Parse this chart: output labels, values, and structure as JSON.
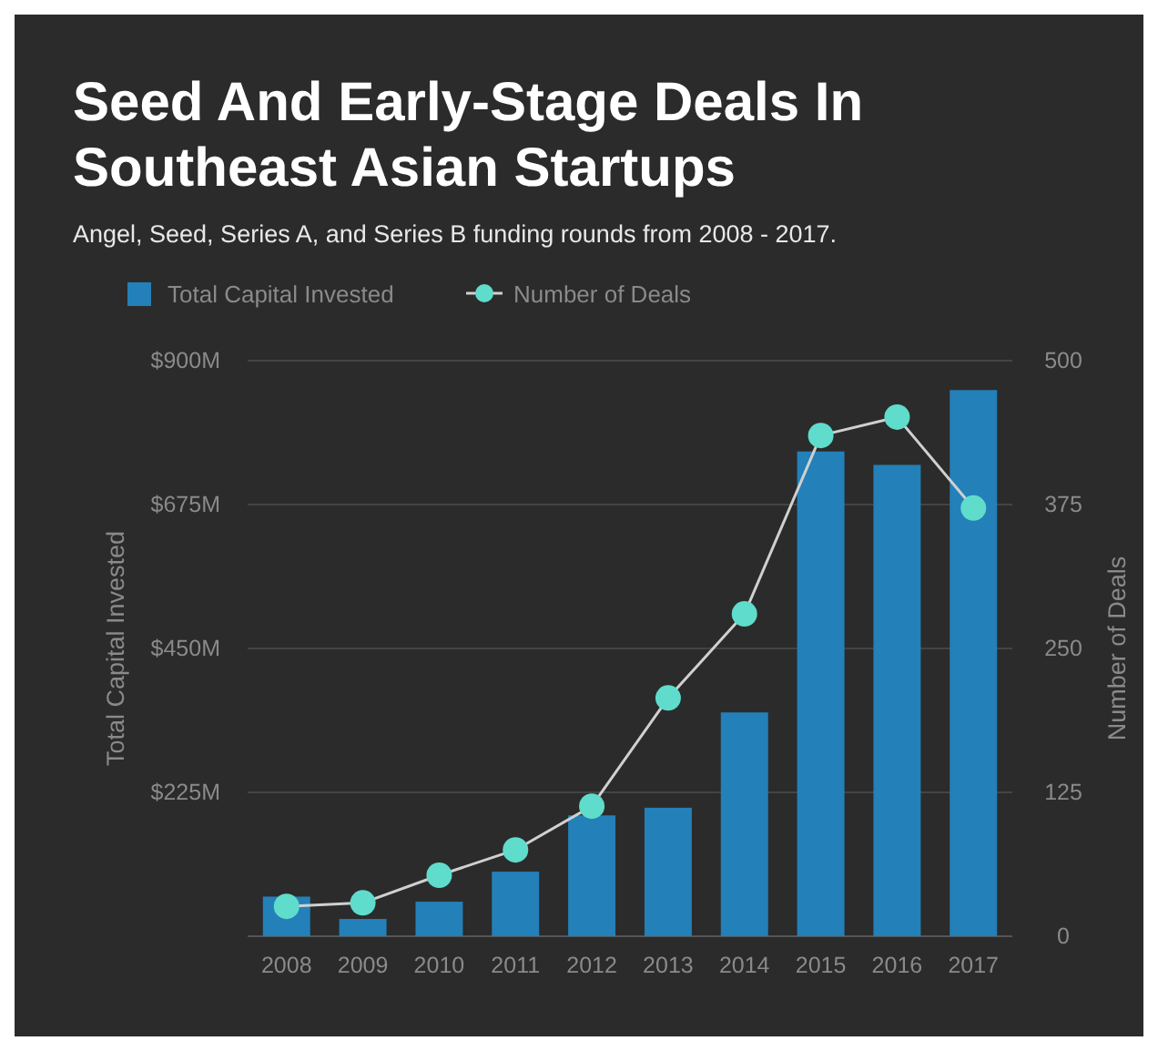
{
  "chart_data": {
    "type": "bar",
    "title": "Seed And Early-Stage Deals In Southeast Asian Startups",
    "subtitle": "Angel, Seed, Series A, and Series B funding rounds from 2008 - 2017.",
    "ylabel": "Total Capital Invested",
    "y2label": "Number of Deals",
    "categories": [
      "2008",
      "2009",
      "2010",
      "2011",
      "2012",
      "2013",
      "2014",
      "2015",
      "2016",
      "2017"
    ],
    "series": [
      {
        "name": "Total Capital Invested",
        "color": "#2380b8",
        "values": [
          62,
          27,
          54,
          101,
          189,
          201,
          350,
          758,
          737,
          854
        ]
      },
      {
        "name": "Number of Deals",
        "type": "line",
        "axis": "y2",
        "color": "#5fdccb",
        "marker": "circle",
        "values": [
          26,
          29,
          53,
          75,
          113,
          207,
          280,
          435,
          451,
          372
        ]
      }
    ],
    "ylim": [
      0,
      900
    ],
    "yticks": [
      {
        "value": 0,
        "label": null
      },
      {
        "value": 225,
        "label": "$225M"
      },
      {
        "value": 450,
        "label": "$450M"
      },
      {
        "value": 675,
        "label": "$675M"
      },
      {
        "value": 900,
        "label": "$900M"
      }
    ],
    "y2lim": [
      0,
      500
    ],
    "y2ticks": [
      0,
      125,
      250,
      375,
      500
    ],
    "grid": "y",
    "legend": "top left"
  }
}
